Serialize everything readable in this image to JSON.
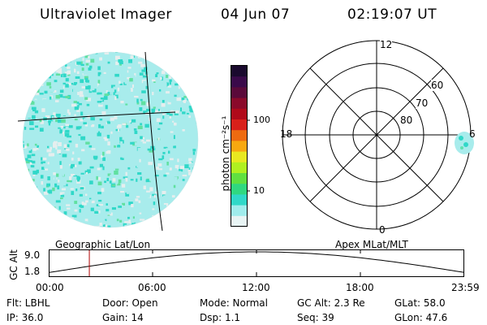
{
  "header": {
    "instrument": "Ultraviolet Imager",
    "date": "04 Jun 07",
    "time": "02:19:07 UT"
  },
  "colorbar": {
    "unit_label": "photon cm⁻²s⁻¹",
    "tick_labels": [
      "100",
      "10"
    ],
    "colors": [
      "#1a0a2e",
      "#3a0a4a",
      "#5a0a3a",
      "#8a0a2a",
      "#b00a1a",
      "#d8201a",
      "#ee6a10",
      "#f8a810",
      "#e8e820",
      "#b0f020",
      "#60e040",
      "#30d880",
      "#30d8c8",
      "#a0ecec",
      "#e8f4f4"
    ]
  },
  "left_panel": {
    "caption": "Geographic Lat/Lon"
  },
  "right_panel": {
    "caption": "Apex  MLat/MLT",
    "mlt_labels": [
      "12",
      "18",
      "6",
      "0"
    ],
    "mlat_labels": [
      "60",
      "70",
      "80"
    ]
  },
  "timeline": {
    "axis_label": "GC Alt",
    "y_ticks": [
      "9.0",
      "1.8"
    ],
    "x_ticks": [
      "00:00",
      "06:00",
      "12:00",
      "18:00",
      "23:59"
    ],
    "current_time_fraction": 0.096
  },
  "status": {
    "flt": "Flt: LBHL",
    "ip": "IP: 36.0",
    "door": "Door: Open",
    "gain": "Gain: 14",
    "mode": "Mode: Normal",
    "dsp": "Dsp:    1.1",
    "gc_alt": "GC Alt: 2.3 Re",
    "seq": "Seq: 39",
    "glat": "GLat:   58.0",
    "glon": "GLon:   47.6"
  }
}
